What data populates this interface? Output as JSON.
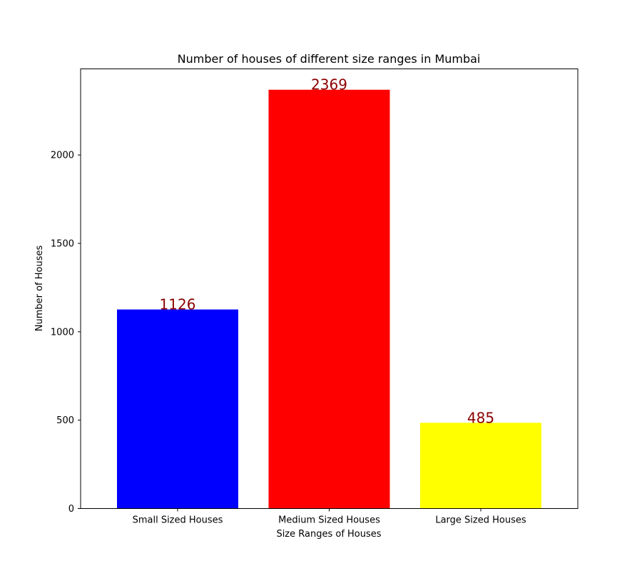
{
  "chart_data": {
    "type": "bar",
    "title": "Number of houses of different size ranges in Mumbai",
    "xlabel": "Size Ranges of Houses",
    "ylabel": "Number of Houses",
    "categories": [
      "Small Sized Houses",
      "Medium Sized Houses",
      "Large Sized Houses"
    ],
    "values": [
      1126,
      2369,
      485
    ],
    "data_labels": [
      "1126",
      "2369",
      "485"
    ],
    "bar_colors": [
      "#0000ff",
      "#ff0000",
      "#ffff00"
    ],
    "data_label_color": "#8b0000",
    "ylim": [
      0,
      2487
    ],
    "yticks": [
      0,
      500,
      1000,
      1500,
      2000
    ],
    "ytick_labels": [
      "0",
      "500",
      "1000",
      "1500",
      "2000"
    ],
    "grid": false,
    "legend": "none"
  }
}
